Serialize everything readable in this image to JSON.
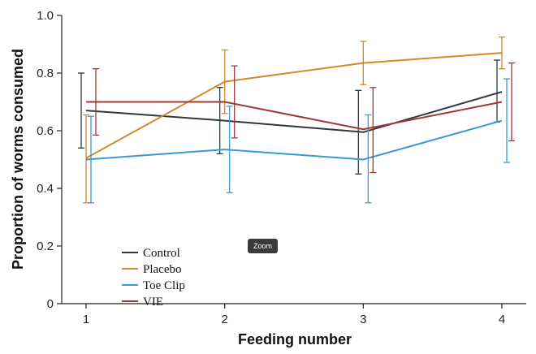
{
  "tooltip": {
    "label": "Zoom"
  },
  "colors": {
    "Control": "#2b3a40",
    "Placebo": "#d08a2a",
    "Toe Clip": "#3a9ad0",
    "VIE": "#a03838"
  },
  "chart_data": {
    "type": "line",
    "title": "",
    "xlabel": "Feeding number",
    "ylabel": "Proportion of worms consumed",
    "x": [
      1,
      2,
      3,
      4
    ],
    "xticks": [
      "1",
      "2",
      "3",
      "4"
    ],
    "ylim": [
      0,
      1.0
    ],
    "yticks": [
      "0",
      "0.2",
      "0.4",
      "0.6",
      "0.8",
      "1.0"
    ],
    "grid": false,
    "legend_position": "bottom-left",
    "series": [
      {
        "name": "Control",
        "values": [
          0.67,
          0.635,
          0.595,
          0.735
        ],
        "err_low": [
          0.54,
          0.52,
          0.45,
          0.63
        ],
        "err_high": [
          0.8,
          0.75,
          0.74,
          0.845
        ]
      },
      {
        "name": "Placebo",
        "values": [
          0.505,
          0.77,
          0.835,
          0.87
        ],
        "err_low": [
          0.35,
          0.66,
          0.76,
          0.815
        ],
        "err_high": [
          0.655,
          0.88,
          0.91,
          0.925
        ]
      },
      {
        "name": "Toe Clip",
        "values": [
          0.5,
          0.535,
          0.5,
          0.635
        ],
        "err_low": [
          0.35,
          0.385,
          0.35,
          0.49
        ],
        "err_high": [
          0.65,
          0.685,
          0.655,
          0.78
        ]
      },
      {
        "name": "VIE",
        "values": [
          0.7,
          0.7,
          0.605,
          0.7
        ],
        "err_low": [
          0.585,
          0.575,
          0.455,
          0.565
        ],
        "err_high": [
          0.815,
          0.825,
          0.75,
          0.835
        ]
      }
    ]
  }
}
